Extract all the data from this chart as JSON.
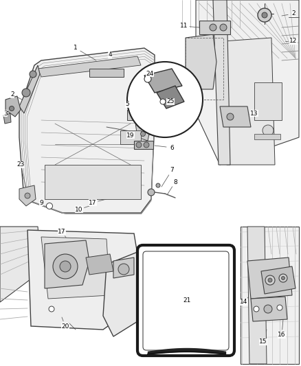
{
  "background_color": "#ffffff",
  "fig_width": 4.38,
  "fig_height": 5.33,
  "dpi": 100,
  "line_color": "#404040",
  "text_color": "#000000",
  "font_size": 6.5,
  "gray_fill": "#d8d8d8",
  "light_fill": "#eeeeee",
  "dark_fill": "#aaaaaa",
  "hatch_color": "#888888"
}
